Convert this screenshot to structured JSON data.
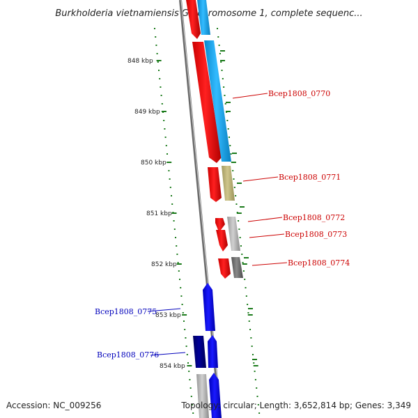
{
  "title": "Burkholderia vietnamiensis G4 chromosome 1, complete sequenc...",
  "footer": {
    "accession": "Accession: NC_009256",
    "topology": "Topology: circular; Length: 3,652,814 bp; Genes: 3,349"
  },
  "colors": {
    "forward_red": "#ff0000",
    "reverse_blue": "#0000ee",
    "dark_blue": "#000080",
    "cyan": "#11aaee",
    "olive": "#bcb478",
    "gray": "#b0b0b0",
    "dark_gray": "#777777",
    "tick_green": "#1a7a1a",
    "label_red": "#cc0000",
    "label_blue": "#0000bb"
  },
  "ticks": [
    "848 kbp",
    "849 kbp",
    "850 kbp",
    "851 kbp",
    "852 kbp",
    "853 kbp",
    "854 kbp"
  ],
  "gene_labels": [
    {
      "text": "Bcep1808_0770",
      "color": "label_red"
    },
    {
      "text": "Bcep1808_0771",
      "color": "label_red"
    },
    {
      "text": "Bcep1808_0772",
      "color": "label_red"
    },
    {
      "text": "Bcep1808_0773",
      "color": "label_red"
    },
    {
      "text": "Bcep1808_0774",
      "color": "label_red"
    },
    {
      "text": "Bcep1808_0775",
      "color": "label_blue"
    },
    {
      "text": "Bcep1808_0776",
      "color": "label_blue"
    }
  ]
}
